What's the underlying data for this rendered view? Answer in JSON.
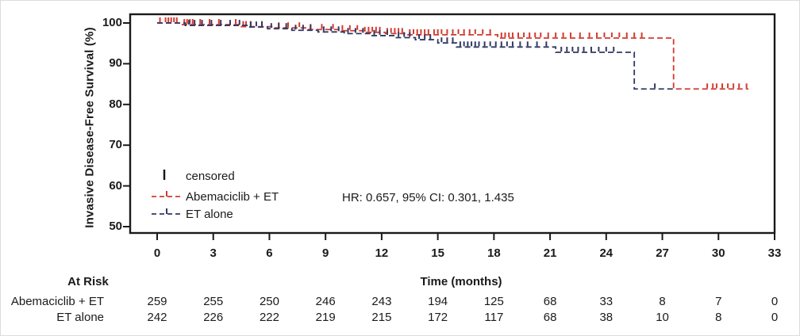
{
  "chart_data": {
    "type": "line",
    "subtype": "kaplan-meier-step",
    "title": "",
    "xlabel": "Time (months)",
    "ylabel": "Invasive Disease-Free Survival (%)",
    "xlim": [
      0,
      33
    ],
    "ylim": [
      50,
      100
    ],
    "x_ticks": [
      0,
      3,
      6,
      9,
      12,
      15,
      18,
      21,
      24,
      27,
      30,
      33
    ],
    "y_ticks": [
      100,
      90,
      80,
      70,
      60,
      50
    ],
    "grid": false,
    "legend_position": "inside-lower-left",
    "annotation": "HR: 0.657, 95% CI: 0.301, 1.435",
    "censored_label": "censored",
    "series": [
      {
        "name": "Abemaciclib + ET",
        "color": "#d23b2f",
        "style": "dashed",
        "steps": [
          [
            0,
            100
          ],
          [
            1.3,
            99.6
          ],
          [
            4.5,
            99.1
          ],
          [
            6.3,
            98.8
          ],
          [
            8.0,
            98.4
          ],
          [
            9.7,
            98.1
          ],
          [
            11.0,
            97.7
          ],
          [
            12.2,
            97.4
          ],
          [
            13.4,
            97.1
          ],
          [
            18.2,
            96.3
          ],
          [
            27.6,
            83.8
          ],
          [
            31.6,
            83.8
          ]
        ],
        "censor_times": [
          0.15,
          0.45,
          0.6,
          0.75,
          0.9,
          1.05,
          1.45,
          1.6,
          1.75,
          1.9,
          2.3,
          2.8,
          3.3,
          4.2,
          4.6,
          4.75,
          5.0,
          5.6,
          6.5,
          7.0,
          7.6,
          8.2,
          8.8,
          9.4,
          9.9,
          10.3,
          10.7,
          11.1,
          11.3,
          11.5,
          11.7,
          11.9,
          12.3,
          12.5,
          12.7,
          12.9,
          13.1,
          13.5,
          13.7,
          13.9,
          14.1,
          14.3,
          14.5,
          14.8,
          15.0,
          15.2,
          15.5,
          15.8,
          16.1,
          16.4,
          16.7,
          17.0,
          17.4,
          17.8,
          18.4,
          18.6,
          18.8,
          19.0,
          19.3,
          19.6,
          19.9,
          20.2,
          20.5,
          20.9,
          21.3,
          21.7,
          22.1,
          22.6,
          23.1,
          23.5,
          23.9,
          24.3,
          24.7,
          25.1,
          25.5,
          25.9,
          29.4,
          29.7,
          29.9,
          30.2,
          30.5,
          30.8,
          31.1,
          31.5
        ]
      },
      {
        "name": "ET alone",
        "color": "#313963",
        "style": "dashed",
        "steps": [
          [
            0,
            100
          ],
          [
            1.5,
            99.4
          ],
          [
            4.8,
            99.0
          ],
          [
            5.9,
            98.6
          ],
          [
            7.2,
            98.2
          ],
          [
            8.6,
            97.8
          ],
          [
            10.0,
            97.4
          ],
          [
            11.4,
            96.9
          ],
          [
            12.7,
            96.4
          ],
          [
            13.8,
            95.9
          ],
          [
            15.0,
            95.1
          ],
          [
            16.0,
            94.1
          ],
          [
            21.3,
            92.8
          ],
          [
            25.5,
            83.8
          ],
          [
            27.6,
            83.8
          ]
        ],
        "censor_times": [
          1.7,
          2.0,
          2.4,
          2.9,
          3.4,
          3.9,
          4.4,
          5.0,
          5.3,
          5.6,
          6.1,
          6.5,
          6.9,
          7.4,
          7.8,
          8.2,
          8.9,
          9.3,
          9.7,
          10.2,
          10.6,
          11.0,
          11.6,
          11.9,
          12.3,
          12.9,
          13.2,
          13.5,
          14.0,
          14.3,
          14.6,
          15.2,
          15.5,
          15.8,
          16.2,
          16.4,
          16.6,
          16.8,
          17.0,
          17.2,
          17.5,
          17.8,
          18.1,
          18.4,
          18.7,
          19.0,
          19.4,
          19.8,
          20.3,
          20.8,
          21.6,
          21.9,
          22.2,
          22.5,
          22.8,
          23.2,
          23.6,
          24.0,
          24.4,
          26.6
        ]
      }
    ]
  },
  "figure": {
    "axis_color": "#1a1a1a",
    "censored_tick_color": "#1a1a1a",
    "background": "#ffffff"
  },
  "at_risk": {
    "title": "At Risk",
    "times": [
      0,
      3,
      6,
      9,
      12,
      15,
      18,
      21,
      24,
      27,
      30,
      33
    ],
    "rows": [
      {
        "label": "Abemaciclib + ET",
        "counts": [
          259,
          255,
          250,
          246,
          243,
          194,
          125,
          68,
          33,
          8,
          7,
          0
        ]
      },
      {
        "label": "ET alone",
        "counts": [
          242,
          226,
          222,
          219,
          215,
          172,
          117,
          68,
          38,
          10,
          8,
          0
        ]
      }
    ]
  }
}
